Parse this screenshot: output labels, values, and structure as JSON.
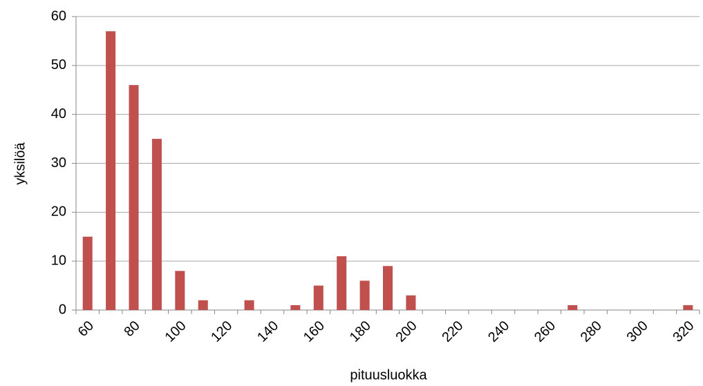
{
  "chart_data": {
    "type": "bar",
    "xlabel": "pituusluokka",
    "ylabel": "yksilöä",
    "categories": [
      "60",
      null,
      "80",
      null,
      "100",
      null,
      "120",
      null,
      "140",
      null,
      "160",
      null,
      "180",
      null,
      "200",
      null,
      "220",
      null,
      "240",
      null,
      "260",
      null,
      "280",
      null,
      "300",
      null,
      "320"
    ],
    "values": [
      15,
      57,
      46,
      35,
      8,
      2,
      0,
      2,
      0,
      1,
      5,
      11,
      6,
      9,
      3,
      0,
      0,
      0,
      0,
      0,
      0,
      1,
      0,
      0,
      0,
      0,
      1
    ],
    "color": "#c0504d",
    "ylim": [
      0,
      60
    ],
    "yticks": [
      0,
      10,
      20,
      30,
      40,
      50,
      60
    ],
    "grid": true
  }
}
